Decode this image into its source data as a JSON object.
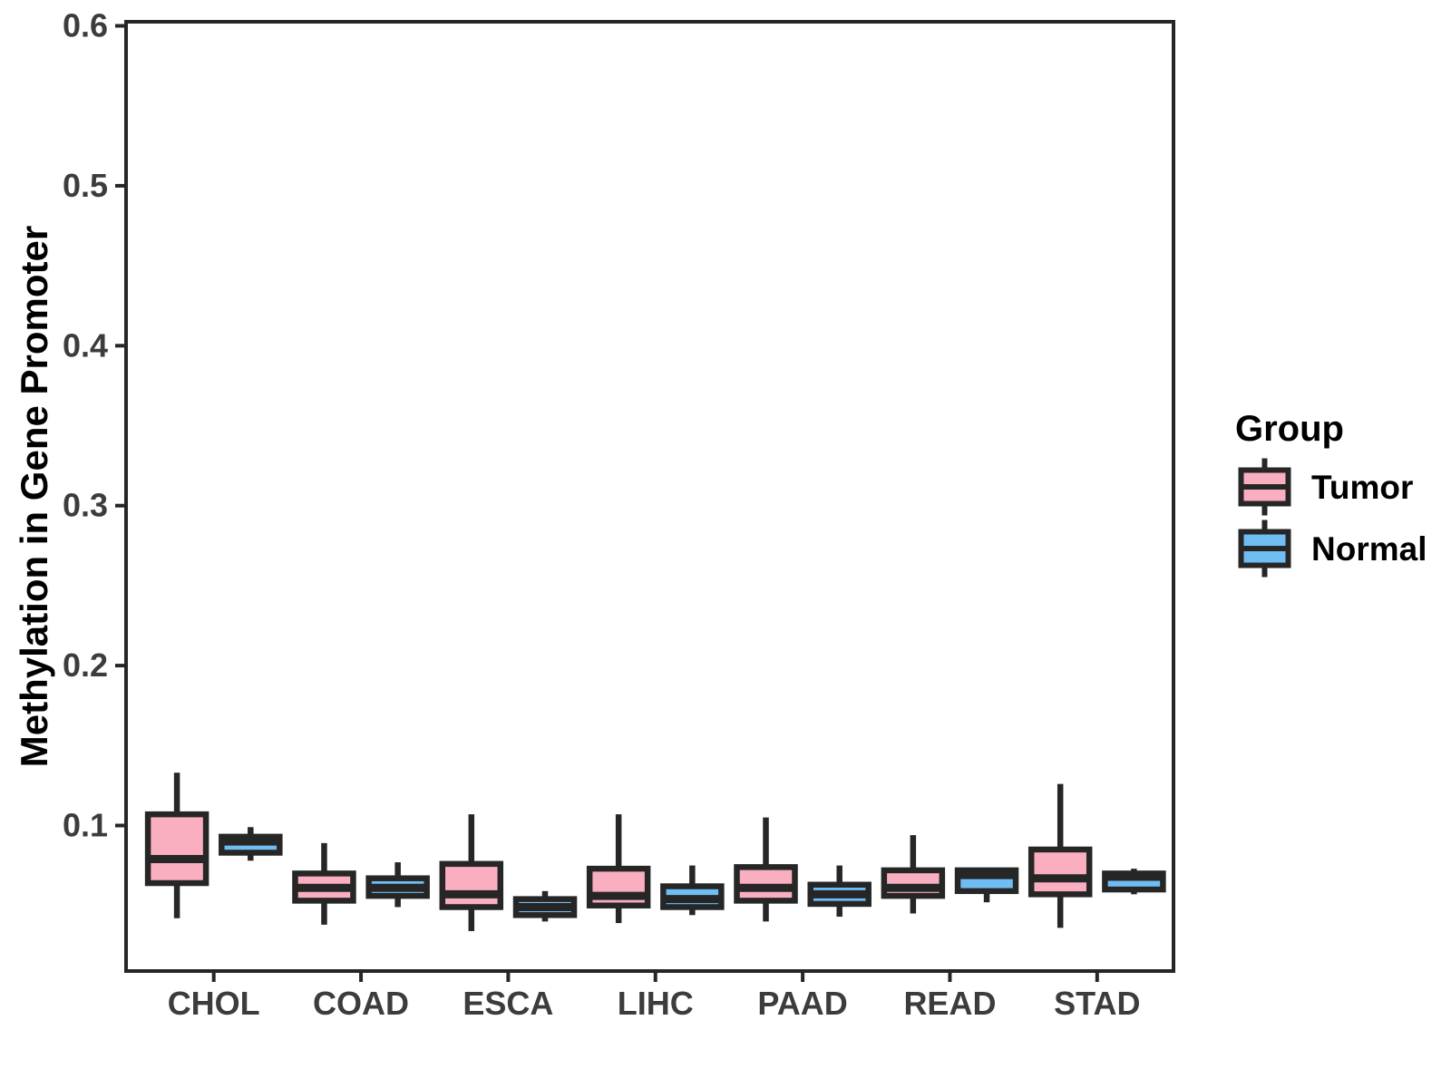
{
  "chart_data": {
    "type": "boxplot",
    "title": "",
    "xlabel": "",
    "ylabel": "Methylation in Gene Promoter",
    "categories": [
      "CHOL",
      "COAD",
      "ESCA",
      "LIHC",
      "PAAD",
      "READ",
      "STAD"
    ],
    "y_axis": {
      "ticks": [
        0.1,
        0.2,
        0.3,
        0.4,
        0.5,
        0.6
      ],
      "tick_labels": [
        "0.1",
        "0.2",
        "0.3",
        "0.4",
        "0.5",
        "0.6"
      ],
      "range_shown": [
        0.009,
        0.603
      ],
      "grid": false
    },
    "legend": {
      "title": "Group",
      "position": "right",
      "entries": [
        {
          "label": "Tumor",
          "fill": "#FAAFC1"
        },
        {
          "label": "Normal",
          "fill": "#70BDF4"
        }
      ]
    },
    "series": [
      {
        "name": "Tumor",
        "fill": "#FAAFC1",
        "boxes": [
          {
            "category": "CHOL",
            "whisker_low": 0.042,
            "q1": 0.064,
            "median": 0.079,
            "q3": 0.107,
            "whisker_high": 0.133
          },
          {
            "category": "COAD",
            "whisker_low": 0.038,
            "q1": 0.053,
            "median": 0.061,
            "q3": 0.07,
            "whisker_high": 0.089
          },
          {
            "category": "ESCA",
            "whisker_low": 0.034,
            "q1": 0.049,
            "median": 0.057,
            "q3": 0.076,
            "whisker_high": 0.107
          },
          {
            "category": "LIHC",
            "whisker_low": 0.039,
            "q1": 0.05,
            "median": 0.056,
            "q3": 0.073,
            "whisker_high": 0.107
          },
          {
            "category": "PAAD",
            "whisker_low": 0.04,
            "q1": 0.053,
            "median": 0.061,
            "q3": 0.074,
            "whisker_high": 0.105
          },
          {
            "category": "READ",
            "whisker_low": 0.045,
            "q1": 0.056,
            "median": 0.061,
            "q3": 0.072,
            "whisker_high": 0.094
          },
          {
            "category": "STAD",
            "whisker_low": 0.036,
            "q1": 0.057,
            "median": 0.067,
            "q3": 0.085,
            "whisker_high": 0.126
          }
        ]
      },
      {
        "name": "Normal",
        "fill": "#70BDF4",
        "boxes": [
          {
            "category": "CHOL",
            "whisker_low": 0.078,
            "q1": 0.083,
            "median": 0.09,
            "q3": 0.093,
            "whisker_high": 0.099
          },
          {
            "category": "COAD",
            "whisker_low": 0.049,
            "q1": 0.056,
            "median": 0.061,
            "q3": 0.067,
            "whisker_high": 0.077
          },
          {
            "category": "ESCA",
            "whisker_low": 0.04,
            "q1": 0.044,
            "median": 0.049,
            "q3": 0.054,
            "whisker_high": 0.059
          },
          {
            "category": "LIHC",
            "whisker_low": 0.044,
            "q1": 0.049,
            "median": 0.054,
            "q3": 0.062,
            "whisker_high": 0.075
          },
          {
            "category": "PAAD",
            "whisker_low": 0.043,
            "q1": 0.051,
            "median": 0.057,
            "q3": 0.063,
            "whisker_high": 0.075
          },
          {
            "category": "READ",
            "whisker_low": 0.052,
            "q1": 0.059,
            "median": 0.069,
            "q3": 0.072,
            "whisker_high": 0.072
          },
          {
            "category": "STAD",
            "whisker_low": 0.057,
            "q1": 0.06,
            "median": 0.068,
            "q3": 0.07,
            "whisker_high": 0.073
          }
        ]
      }
    ],
    "colors": {
      "box_outline": "#262626",
      "median_line": "#262626",
      "panel_border": "#262626",
      "tick_mark": "#262626",
      "axis_tick_text": "#3C3C3C",
      "axis_title_text": "#000000",
      "legend_text": "#000000",
      "background": "#FFFFFF"
    }
  }
}
